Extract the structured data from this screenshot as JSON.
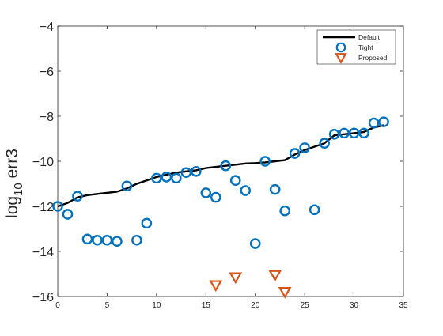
{
  "chart_data": {
    "type": "scatter",
    "title": "",
    "xlabel": "",
    "ylabel": {
      "base": "log",
      "sub": "10",
      "rest": " err3"
    },
    "xlim": [
      0,
      35
    ],
    "ylim": [
      -16,
      -4
    ],
    "xticks": [
      0,
      5,
      10,
      15,
      20,
      25,
      30,
      35
    ],
    "yticks": [
      -16,
      -14,
      -12,
      -10,
      -8,
      -6,
      -4
    ],
    "ytick_labels": [
      "−16",
      "−14",
      "−12",
      "−10",
      "−8",
      "−6",
      "−4"
    ],
    "grid": false,
    "legend_position": "top-right",
    "series": [
      {
        "name": "Default",
        "kind": "line",
        "color": "#000000",
        "x": [
          0,
          1,
          2,
          3,
          4,
          5,
          6,
          7,
          8,
          9,
          10,
          11,
          12,
          13,
          14,
          15,
          16,
          17,
          18,
          19,
          20,
          21,
          22,
          23,
          24,
          25,
          26,
          27,
          28,
          29,
          30,
          31,
          32,
          33
        ],
        "y": [
          -12.0,
          -11.85,
          -11.6,
          -11.5,
          -11.45,
          -11.4,
          -11.35,
          -11.2,
          -11.0,
          -10.85,
          -10.7,
          -10.6,
          -10.5,
          -10.45,
          -10.4,
          -10.3,
          -10.25,
          -10.2,
          -10.15,
          -10.1,
          -10.08,
          -10.05,
          -10.0,
          -9.95,
          -9.7,
          -9.5,
          -9.35,
          -9.2,
          -8.85,
          -8.8,
          -8.75,
          -8.7,
          -8.5,
          -8.4
        ]
      },
      {
        "name": "Tight",
        "kind": "circle",
        "color": "#0072BD",
        "x": [
          0,
          1,
          2,
          3,
          4,
          5,
          6,
          7,
          8,
          9,
          10,
          11,
          12,
          13,
          14,
          15,
          16,
          17,
          18,
          19,
          20,
          21,
          22,
          23,
          24,
          25,
          26,
          27,
          28,
          29,
          30,
          31,
          32,
          33
        ],
        "y": [
          -12.0,
          -12.35,
          -11.55,
          -13.45,
          -13.5,
          -13.5,
          -13.55,
          -11.1,
          -13.5,
          -12.75,
          -10.75,
          -10.7,
          -10.75,
          -10.5,
          -10.45,
          -11.4,
          -11.6,
          -10.2,
          -10.85,
          -11.3,
          -13.65,
          -10.0,
          -11.25,
          -12.2,
          -9.65,
          -9.4,
          -12.15,
          -9.2,
          -8.8,
          -8.75,
          -8.75,
          -8.75,
          -8.3,
          -8.25
        ]
      },
      {
        "name": "Proposed",
        "kind": "triangle-down",
        "color": "#D95319",
        "x": [
          16,
          18,
          22,
          23
        ],
        "y": [
          -15.5,
          -15.15,
          -15.05,
          -15.8
        ]
      }
    ]
  }
}
